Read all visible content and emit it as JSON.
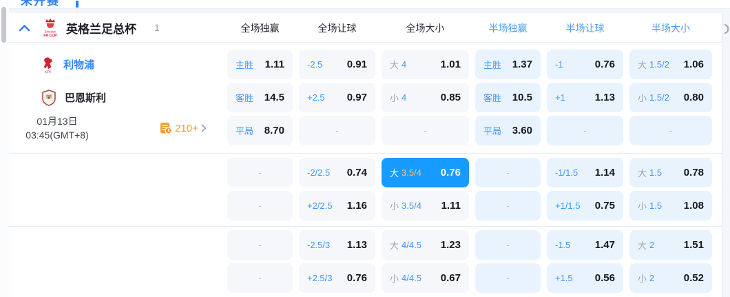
{
  "dash": "-",
  "tab": {
    "label": "未开赛"
  },
  "league": {
    "title": "英格兰足总杯",
    "count": "1",
    "logo_line1": "Emirates",
    "logo_line2": "FA CUP"
  },
  "columns": [
    {
      "label": "全场独赢",
      "half": false
    },
    {
      "label": "全场让球",
      "half": false
    },
    {
      "label": "全场大小",
      "half": false
    },
    {
      "label": "半场独赢",
      "half": true
    },
    {
      "label": "半场让球",
      "half": true
    },
    {
      "label": "半场大小",
      "half": true
    }
  ],
  "match": {
    "home_name": "利物浦",
    "away_name": "巴恩斯利",
    "date": "01月13日",
    "time": "03:45(GMT+8)",
    "markets_count": "210+"
  },
  "colors": {
    "highlight": "#189bff",
    "label_blue": "#3f97f8",
    "orange": "#f79b2e"
  },
  "odds_groups": [
    {
      "rows": [
        {
          "cells": [
            {
              "type": "win",
              "label": "主胜",
              "value": "1.11"
            },
            {
              "type": "hcp",
              "label": "-2.5",
              "value": "0.91"
            },
            {
              "type": "ou",
              "prefix": "大",
              "label": "4",
              "value": "1.01"
            },
            {
              "type": "win",
              "half": true,
              "label": "主胜",
              "value": "1.37"
            },
            {
              "type": "hcp",
              "half": true,
              "label": "-1",
              "value": "0.76"
            },
            {
              "type": "ou",
              "half": true,
              "prefix": "大",
              "label": "1.5/2",
              "value": "1.06"
            }
          ]
        },
        {
          "cells": [
            {
              "type": "win",
              "label": "客胜",
              "value": "14.5"
            },
            {
              "type": "hcp",
              "label": "+2.5",
              "value": "0.97"
            },
            {
              "type": "ou",
              "prefix": "小",
              "label": "4",
              "value": "0.85"
            },
            {
              "type": "win",
              "half": true,
              "label": "客胜",
              "value": "10.5"
            },
            {
              "type": "hcp",
              "half": true,
              "label": "+1",
              "value": "1.13"
            },
            {
              "type": "ou",
              "half": true,
              "prefix": "小",
              "label": "1.5/2",
              "value": "0.80"
            }
          ]
        },
        {
          "cells": [
            {
              "type": "win",
              "label": "平局",
              "value": "8.70"
            },
            {
              "type": "empty"
            },
            {
              "type": "empty"
            },
            {
              "type": "win",
              "half": true,
              "label": "平局",
              "value": "3.60"
            },
            {
              "type": "empty",
              "half": true
            },
            {
              "type": "empty",
              "half": true
            }
          ]
        }
      ]
    },
    {
      "rows": [
        {
          "cells": [
            {
              "type": "empty"
            },
            {
              "type": "hcp",
              "label": "-2/2.5",
              "value": "0.74"
            },
            {
              "type": "ou",
              "prefix": "大",
              "label": "3.5/4",
              "value": "0.76",
              "selected": true
            },
            {
              "type": "empty",
              "half": true
            },
            {
              "type": "hcp",
              "half": true,
              "label": "-1/1.5",
              "value": "1.14"
            },
            {
              "type": "ou",
              "half": true,
              "prefix": "大",
              "label": "1.5",
              "value": "0.78"
            }
          ]
        },
        {
          "cells": [
            {
              "type": "empty"
            },
            {
              "type": "hcp",
              "label": "+2/2.5",
              "value": "1.16"
            },
            {
              "type": "ou",
              "prefix": "小",
              "label": "3.5/4",
              "value": "1.11"
            },
            {
              "type": "empty",
              "half": true
            },
            {
              "type": "hcp",
              "half": true,
              "label": "+1/1.5",
              "value": "0.75"
            },
            {
              "type": "ou",
              "half": true,
              "prefix": "小",
              "label": "1.5",
              "value": "1.08"
            }
          ]
        }
      ]
    },
    {
      "rows": [
        {
          "cells": [
            {
              "type": "empty"
            },
            {
              "type": "hcp",
              "label": "-2.5/3",
              "value": "1.13"
            },
            {
              "type": "ou",
              "prefix": "大",
              "label": "4/4.5",
              "value": "1.23"
            },
            {
              "type": "empty",
              "half": true
            },
            {
              "type": "hcp",
              "half": true,
              "label": "-1.5",
              "value": "1.47"
            },
            {
              "type": "ou",
              "half": true,
              "prefix": "大",
              "label": "2",
              "value": "1.51"
            }
          ]
        },
        {
          "cells": [
            {
              "type": "empty"
            },
            {
              "type": "hcp",
              "label": "+2.5/3",
              "value": "0.76"
            },
            {
              "type": "ou",
              "prefix": "小",
              "label": "4/4.5",
              "value": "0.67"
            },
            {
              "type": "empty",
              "half": true
            },
            {
              "type": "hcp",
              "half": true,
              "label": "+1.5",
              "value": "0.56"
            },
            {
              "type": "ou",
              "half": true,
              "prefix": "小",
              "label": "2",
              "value": "0.52"
            }
          ]
        }
      ]
    }
  ]
}
